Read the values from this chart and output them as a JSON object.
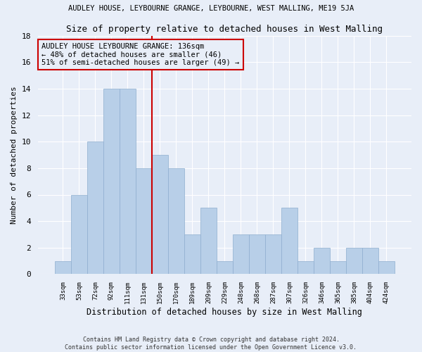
{
  "title_top": "AUDLEY HOUSE, LEYBOURNE GRANGE, LEYBOURNE, WEST MALLING, ME19 5JA",
  "title_main": "Size of property relative to detached houses in West Malling",
  "xlabel": "Distribution of detached houses by size in West Malling",
  "ylabel": "Number of detached properties",
  "categories": [
    "33sqm",
    "53sqm",
    "72sqm",
    "92sqm",
    "111sqm",
    "131sqm",
    "150sqm",
    "170sqm",
    "189sqm",
    "209sqm",
    "229sqm",
    "248sqm",
    "268sqm",
    "287sqm",
    "307sqm",
    "326sqm",
    "346sqm",
    "365sqm",
    "385sqm",
    "404sqm",
    "424sqm"
  ],
  "values": [
    1,
    6,
    10,
    14,
    14,
    8,
    9,
    8,
    3,
    5,
    1,
    3,
    3,
    3,
    5,
    1,
    2,
    1,
    2,
    2,
    1
  ],
  "bar_color": "#b8cfe8",
  "bar_edge_color": "#8eaecf",
  "vline_x": 5.5,
  "vline_color": "#cc0000",
  "annotation_text": "AUDLEY HOUSE LEYBOURNE GRANGE: 136sqm\n← 48% of detached houses are smaller (46)\n51% of semi-detached houses are larger (49) →",
  "annotation_box_color": "#cc0000",
  "ylim": [
    0,
    18
  ],
  "yticks": [
    0,
    2,
    4,
    6,
    8,
    10,
    12,
    14,
    16,
    18
  ],
  "footer_line1": "Contains HM Land Registry data © Crown copyright and database right 2024.",
  "footer_line2": "Contains public sector information licensed under the Open Government Licence v3.0.",
  "background_color": "#e8eef8",
  "grid_color": "#ffffff"
}
